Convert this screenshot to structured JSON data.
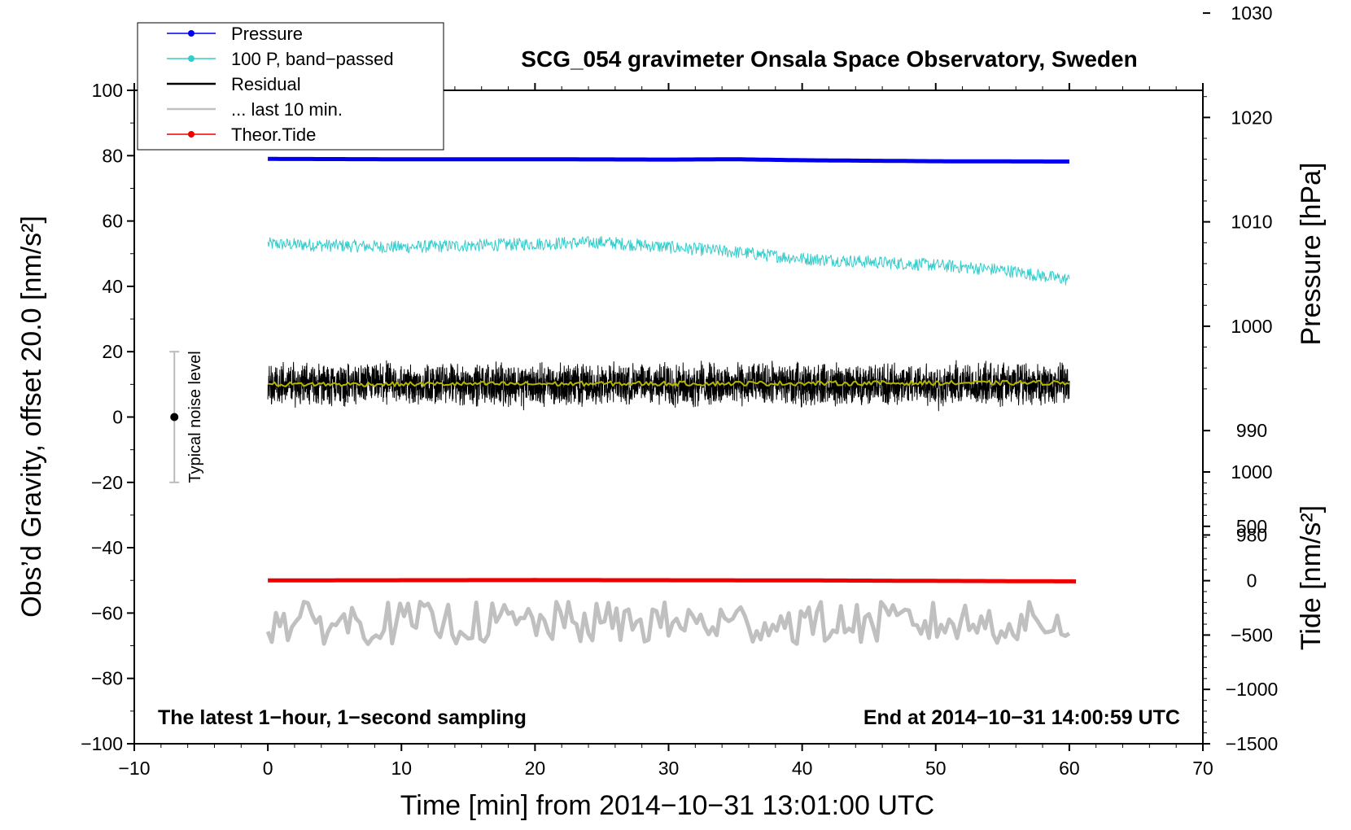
{
  "chart_data": {
    "type": "line",
    "title": "SCG_054 gravimeter Onsala Space Observatory, Sweden",
    "xlabel": "Time [min] from 2014−10−31 13:01:00 UTC",
    "ylabel_left": "Obs’d Gravity, offset 20.0 [nm/s²]",
    "ylabel_right_top": "Pressure [hPa]",
    "ylabel_right_bottom": "Tide [nm/s²]",
    "xlim": [
      -10,
      70
    ],
    "ylim": [
      -100,
      100
    ],
    "pressure_axis_range": [
      1022.6,
      960.0
    ],
    "tide_axis_range": [
      -1500,
      1000
    ],
    "x_ticks": [
      "−10",
      "0",
      "10",
      "20",
      "30",
      "40",
      "50",
      "60",
      "70"
    ],
    "y_ticks": [
      "100",
      "80",
      "60",
      "40",
      "20",
      "0",
      "−20",
      "−40",
      "−60",
      "−80",
      "−100"
    ],
    "pressure_ticks": [
      "1030",
      "1020",
      "1010",
      "1000",
      "990",
      "980"
    ],
    "tide_ticks": [
      "1000",
      "500",
      "0",
      "−500",
      "−1000",
      "−1500"
    ],
    "annotation_left": "The latest 1−hour, 1−second sampling",
    "annotation_right": "End at 2014−10−31 14:00:59 UTC",
    "noise_label": "Typical noise level",
    "noise_bar": [
      -20,
      20
    ],
    "noise_x": -7,
    "legend": [
      {
        "label": "Pressure",
        "color": "#0000ee",
        "marker": true
      },
      {
        "label": "100 P, band−passed",
        "color": "#33cccc",
        "marker": true
      },
      {
        "label": "Residual",
        "color": "#000000",
        "marker": false
      },
      {
        "label": "... last 10 min.",
        "color": "#c0c0c0",
        "marker": false
      },
      {
        "label": "Theor.Tide",
        "color": "#ee0000",
        "marker": true
      }
    ],
    "series": [
      {
        "name": "Pressure",
        "color": "#0000ee",
        "x": [
          0,
          10,
          20,
          30,
          35,
          40,
          50,
          60
        ],
        "y": [
          79.0,
          78.9,
          78.9,
          78.8,
          78.9,
          78.6,
          78.3,
          78.2
        ]
      },
      {
        "name": "100 P, band−passed",
        "color": "#33cccc",
        "x": [
          0,
          10,
          20,
          25,
          30,
          35,
          40,
          45,
          50,
          55,
          60
        ],
        "y": [
          53.0,
          52.0,
          53.0,
          53.5,
          52.0,
          50.5,
          48.5,
          47.5,
          46.5,
          45.0,
          42.0
        ],
        "noise_amplitude": 3.0
      },
      {
        "name": "Residual",
        "color": "#000000",
        "x": [
          0,
          60
        ],
        "y": [
          10.0,
          10.0
        ],
        "noise_amplitude": 11.0
      },
      {
        "name": "Residual running mean",
        "color": "#b5b500",
        "x": [
          0,
          60
        ],
        "y": [
          10.0,
          10.5
        ]
      },
      {
        "name": "... last 10 min.",
        "color": "#c0c0c0",
        "x": [
          0,
          60
        ],
        "y": [
          -63.0,
          -63.0
        ],
        "noise_amplitude": 10.0
      },
      {
        "name": "Theor.Tide",
        "color": "#ee0000",
        "x": [
          0,
          20,
          40,
          60.5
        ],
        "y": [
          -50.0,
          -49.9,
          -50.0,
          -50.3
        ]
      }
    ]
  }
}
